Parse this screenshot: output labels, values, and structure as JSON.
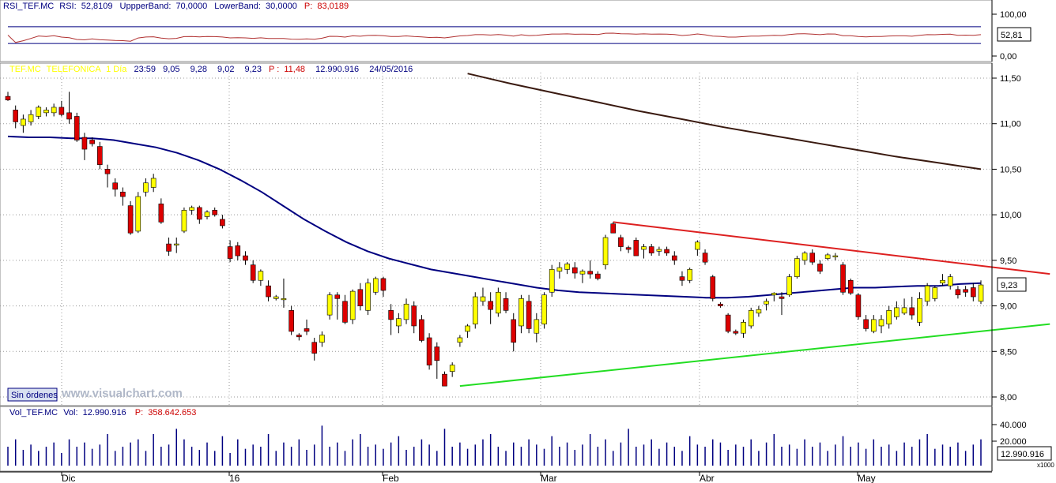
{
  "rsi_panel": {
    "header": {
      "label_name": "RSI_TEF.MC",
      "label_rsi": "RSI:",
      "rsi_value": "52,8109",
      "label_upper": "UppperBand:",
      "upper_value": "70,0000",
      "label_lower": "LowerBand:",
      "lower_value": "30,0000",
      "label_p": "P:",
      "p_value": "83,0189"
    },
    "axis": {
      "top": "100,00",
      "bottom": "0,00"
    },
    "last_value": "52,81",
    "upper_band": 70,
    "lower_band": 30,
    "colors": {
      "band": "#000080",
      "line": "#b03030"
    }
  },
  "price_panel": {
    "header": {
      "ticker": "TEF.MC",
      "name": "TELEFONICA",
      "period": "1 Día",
      "time": "23:59",
      "open": "9,05",
      "high": "9,28",
      "low": "9,02",
      "close": "9,23",
      "label_p": "P :",
      "p_value": "11,48",
      "volume": "12.990.916",
      "date": "24/05/2016"
    },
    "axis_ticks": [
      "11,50",
      "11,00",
      "10,50",
      "10,00",
      "9,50",
      "9,00",
      "8,50",
      "8,00"
    ],
    "last_price": "9,23",
    "orders_label": "Sin órdenes",
    "watermark": "www.visualchart.com",
    "colors": {
      "up": "#ffff00",
      "down": "#dd0000",
      "ma_short": "#000080",
      "ma_long": "#3a1a10",
      "resistance": "#dd2020",
      "support": "#22dd22"
    }
  },
  "volume_panel": {
    "header": {
      "label_name": "Vol_TEF.MC",
      "label_vol": "Vol:",
      "vol_value": "12.990.916",
      "label_p": "P:",
      "p_value": "358.642.653"
    },
    "axis": {
      "top": "40.000",
      "mid": "20.000",
      "unit": "x1000"
    },
    "last_value": "12.990.916",
    "colors": {
      "bar": "#000080"
    }
  },
  "date_axis": [
    "Dic",
    "16",
    "Feb",
    "Mar",
    "Abr",
    "May"
  ],
  "chart_data": {
    "type": "candlestick",
    "x_axis": [
      "Dic",
      "16",
      "Feb",
      "Mar",
      "Abr",
      "May"
    ],
    "ylim": [
      8.0,
      11.5
    ],
    "candles": [
      {
        "o": 11.3,
        "h": 11.35,
        "l": 11.25,
        "c": 11.26
      },
      {
        "o": 11.15,
        "h": 11.2,
        "l": 10.95,
        "c": 11.02
      },
      {
        "o": 10.98,
        "h": 11.1,
        "l": 10.9,
        "c": 11.05
      },
      {
        "o": 11.02,
        "h": 11.15,
        "l": 10.98,
        "c": 11.1
      },
      {
        "o": 11.08,
        "h": 11.2,
        "l": 11.05,
        "c": 11.18
      },
      {
        "o": 11.12,
        "h": 11.18,
        "l": 11.08,
        "c": 11.15
      },
      {
        "o": 11.12,
        "h": 11.22,
        "l": 11.08,
        "c": 11.18
      },
      {
        "o": 11.18,
        "h": 11.25,
        "l": 11.08,
        "c": 11.1
      },
      {
        "o": 11.12,
        "h": 11.35,
        "l": 11.0,
        "c": 11.05
      },
      {
        "o": 11.08,
        "h": 11.12,
        "l": 10.8,
        "c": 10.82
      },
      {
        "o": 10.85,
        "h": 10.9,
        "l": 10.6,
        "c": 10.72
      },
      {
        "o": 10.82,
        "h": 10.85,
        "l": 10.75,
        "c": 10.78
      },
      {
        "o": 10.75,
        "h": 10.8,
        "l": 10.5,
        "c": 10.55
      },
      {
        "o": 10.5,
        "h": 10.55,
        "l": 10.3,
        "c": 10.45
      },
      {
        "o": 10.35,
        "h": 10.4,
        "l": 10.2,
        "c": 10.28
      },
      {
        "o": 10.25,
        "h": 10.3,
        "l": 10.1,
        "c": 10.2
      },
      {
        "o": 10.1,
        "h": 10.15,
        "l": 9.78,
        "c": 9.8
      },
      {
        "o": 9.82,
        "h": 10.25,
        "l": 9.8,
        "c": 10.2
      },
      {
        "o": 10.25,
        "h": 10.4,
        "l": 10.2,
        "c": 10.35
      },
      {
        "o": 10.3,
        "h": 10.45,
        "l": 10.25,
        "c": 10.4
      },
      {
        "o": 10.12,
        "h": 10.18,
        "l": 9.9,
        "c": 9.92
      },
      {
        "o": 9.68,
        "h": 9.75,
        "l": 9.55,
        "c": 9.6
      },
      {
        "o": 9.68,
        "h": 9.75,
        "l": 9.58,
        "c": 9.68
      },
      {
        "o": 9.82,
        "h": 10.08,
        "l": 9.8,
        "c": 10.05
      },
      {
        "o": 10.05,
        "h": 10.1,
        "l": 10.0,
        "c": 10.08
      },
      {
        "o": 10.08,
        "h": 10.1,
        "l": 9.9,
        "c": 9.95
      },
      {
        "o": 9.98,
        "h": 10.05,
        "l": 9.95,
        "c": 10.03
      },
      {
        "o": 10.05,
        "h": 10.08,
        "l": 9.98,
        "c": 10.0
      },
      {
        "o": 9.95,
        "h": 10.0,
        "l": 9.85,
        "c": 9.88
      },
      {
        "o": 9.65,
        "h": 9.72,
        "l": 9.48,
        "c": 9.52
      },
      {
        "o": 9.66,
        "h": 9.7,
        "l": 9.5,
        "c": 9.55
      },
      {
        "o": 9.55,
        "h": 9.6,
        "l": 9.45,
        "c": 9.5
      },
      {
        "o": 9.45,
        "h": 9.5,
        "l": 9.25,
        "c": 9.28
      },
      {
        "o": 9.28,
        "h": 9.4,
        "l": 9.22,
        "c": 9.38
      },
      {
        "o": 9.22,
        "h": 9.28,
        "l": 9.05,
        "c": 9.1
      },
      {
        "o": 9.08,
        "h": 9.12,
        "l": 9.06,
        "c": 9.1
      },
      {
        "o": 9.08,
        "h": 9.3,
        "l": 8.98,
        "c": 9.08
      },
      {
        "o": 8.95,
        "h": 9.0,
        "l": 8.68,
        "c": 8.72
      },
      {
        "o": 8.68,
        "h": 8.7,
        "l": 8.62,
        "c": 8.66
      },
      {
        "o": 8.75,
        "h": 8.85,
        "l": 8.68,
        "c": 8.72
      },
      {
        "o": 8.6,
        "h": 8.65,
        "l": 8.4,
        "c": 8.48
      },
      {
        "o": 8.6,
        "h": 8.72,
        "l": 8.55,
        "c": 8.68
      },
      {
        "o": 8.9,
        "h": 9.15,
        "l": 8.85,
        "c": 9.12
      },
      {
        "o": 9.12,
        "h": 9.15,
        "l": 8.85,
        "c": 9.08
      },
      {
        "o": 9.05,
        "h": 9.12,
        "l": 8.8,
        "c": 8.82
      },
      {
        "o": 8.85,
        "h": 9.18,
        "l": 8.8,
        "c": 9.16
      },
      {
        "o": 9.18,
        "h": 9.25,
        "l": 8.95,
        "c": 9.0
      },
      {
        "o": 8.95,
        "h": 9.3,
        "l": 8.9,
        "c": 9.25
      },
      {
        "o": 9.15,
        "h": 9.32,
        "l": 9.12,
        "c": 9.3
      },
      {
        "o": 9.3,
        "h": 9.32,
        "l": 9.1,
        "c": 9.17
      },
      {
        "o": 8.95,
        "h": 9.02,
        "l": 8.68,
        "c": 8.85
      },
      {
        "o": 8.78,
        "h": 8.92,
        "l": 8.7,
        "c": 8.86
      },
      {
        "o": 8.85,
        "h": 9.08,
        "l": 8.8,
        "c": 9.02
      },
      {
        "o": 9.0,
        "h": 9.05,
        "l": 8.7,
        "c": 8.78
      },
      {
        "o": 8.85,
        "h": 8.9,
        "l": 8.6,
        "c": 8.62
      },
      {
        "o": 8.65,
        "h": 8.7,
        "l": 8.3,
        "c": 8.35
      },
      {
        "o": 8.55,
        "h": 8.6,
        "l": 8.2,
        "c": 8.4
      },
      {
        "o": 8.25,
        "h": 8.28,
        "l": 8.12,
        "c": 8.12
      },
      {
        "o": 8.28,
        "h": 8.38,
        "l": 8.22,
        "c": 8.35
      },
      {
        "o": 8.6,
        "h": 8.68,
        "l": 8.55,
        "c": 8.65
      },
      {
        "o": 8.72,
        "h": 8.8,
        "l": 8.65,
        "c": 8.78
      },
      {
        "o": 8.8,
        "h": 9.15,
        "l": 8.75,
        "c": 9.1
      },
      {
        "o": 9.05,
        "h": 9.2,
        "l": 9.0,
        "c": 9.1
      },
      {
        "o": 9.05,
        "h": 9.15,
        "l": 8.8,
        "c": 8.96
      },
      {
        "o": 8.92,
        "h": 9.2,
        "l": 8.88,
        "c": 9.15
      },
      {
        "o": 9.08,
        "h": 9.15,
        "l": 8.92,
        "c": 8.95
      },
      {
        "o": 8.85,
        "h": 8.92,
        "l": 8.5,
        "c": 8.6
      },
      {
        "o": 8.78,
        "h": 9.12,
        "l": 8.7,
        "c": 9.08
      },
      {
        "o": 9.05,
        "h": 9.12,
        "l": 8.7,
        "c": 8.75
      },
      {
        "o": 8.7,
        "h": 8.92,
        "l": 8.6,
        "c": 8.85
      },
      {
        "o": 8.8,
        "h": 9.15,
        "l": 8.75,
        "c": 9.12
      },
      {
        "o": 9.15,
        "h": 9.45,
        "l": 9.1,
        "c": 9.4
      },
      {
        "o": 9.38,
        "h": 9.48,
        "l": 9.3,
        "c": 9.42
      },
      {
        "o": 9.4,
        "h": 9.48,
        "l": 9.35,
        "c": 9.46
      },
      {
        "o": 9.42,
        "h": 9.48,
        "l": 9.3,
        "c": 9.36
      },
      {
        "o": 9.35,
        "h": 9.4,
        "l": 9.25,
        "c": 9.38
      },
      {
        "o": 9.38,
        "h": 9.5,
        "l": 9.3,
        "c": 9.35
      },
      {
        "o": 9.35,
        "h": 9.38,
        "l": 9.28,
        "c": 9.3
      },
      {
        "o": 9.45,
        "h": 9.78,
        "l": 9.4,
        "c": 9.75
      },
      {
        "o": 9.9,
        "h": 9.92,
        "l": 9.8,
        "c": 9.8
      },
      {
        "o": 9.75,
        "h": 9.78,
        "l": 9.6,
        "c": 9.65
      },
      {
        "o": 9.64,
        "h": 9.66,
        "l": 9.58,
        "c": 9.62
      },
      {
        "o": 9.72,
        "h": 9.75,
        "l": 9.55,
        "c": 9.55
      },
      {
        "o": 9.62,
        "h": 9.68,
        "l": 9.52,
        "c": 9.65
      },
      {
        "o": 9.65,
        "h": 9.68,
        "l": 9.55,
        "c": 9.58
      },
      {
        "o": 9.6,
        "h": 9.65,
        "l": 9.55,
        "c": 9.62
      },
      {
        "o": 9.62,
        "h": 9.65,
        "l": 9.55,
        "c": 9.58
      },
      {
        "o": 9.55,
        "h": 9.6,
        "l": 9.45,
        "c": 9.5
      },
      {
        "o": 9.32,
        "h": 9.38,
        "l": 9.22,
        "c": 9.28
      },
      {
        "o": 9.28,
        "h": 9.42,
        "l": 9.25,
        "c": 9.4
      },
      {
        "o": 9.62,
        "h": 9.72,
        "l": 9.55,
        "c": 9.7
      },
      {
        "o": 9.58,
        "h": 9.62,
        "l": 9.45,
        "c": 9.48
      },
      {
        "o": 9.32,
        "h": 9.34,
        "l": 9.05,
        "c": 9.08
      },
      {
        "o": 9.02,
        "h": 9.04,
        "l": 8.98,
        "c": 9.0
      },
      {
        "o": 8.9,
        "h": 8.92,
        "l": 8.7,
        "c": 8.72
      },
      {
        "o": 8.72,
        "h": 8.74,
        "l": 8.68,
        "c": 8.7
      },
      {
        "o": 8.7,
        "h": 8.85,
        "l": 8.65,
        "c": 8.82
      },
      {
        "o": 8.78,
        "h": 8.98,
        "l": 8.75,
        "c": 8.95
      },
      {
        "o": 8.92,
        "h": 9.0,
        "l": 8.88,
        "c": 8.96
      },
      {
        "o": 9.02,
        "h": 9.08,
        "l": 8.95,
        "c": 9.05
      },
      {
        "o": 9.12,
        "h": 9.15,
        "l": 9.05,
        "c": 9.14
      },
      {
        "o": 9.1,
        "h": 9.15,
        "l": 8.9,
        "c": 9.08
      },
      {
        "o": 9.12,
        "h": 9.35,
        "l": 9.1,
        "c": 9.32
      },
      {
        "o": 9.32,
        "h": 9.55,
        "l": 9.3,
        "c": 9.52
      },
      {
        "o": 9.5,
        "h": 9.6,
        "l": 9.45,
        "c": 9.58
      },
      {
        "o": 9.58,
        "h": 9.62,
        "l": 9.45,
        "c": 9.48
      },
      {
        "o": 9.46,
        "h": 9.5,
        "l": 9.35,
        "c": 9.38
      },
      {
        "o": 9.52,
        "h": 9.58,
        "l": 9.5,
        "c": 9.56
      },
      {
        "o": 9.55,
        "h": 9.58,
        "l": 9.5,
        "c": 9.55
      },
      {
        "o": 9.45,
        "h": 9.48,
        "l": 9.12,
        "c": 9.15
      },
      {
        "o": 9.28,
        "h": 9.3,
        "l": 9.12,
        "c": 9.14
      },
      {
        "o": 9.12,
        "h": 9.14,
        "l": 8.85,
        "c": 8.88
      },
      {
        "o": 8.85,
        "h": 8.9,
        "l": 8.72,
        "c": 8.75
      },
      {
        "o": 8.72,
        "h": 8.9,
        "l": 8.7,
        "c": 8.85
      },
      {
        "o": 8.78,
        "h": 8.9,
        "l": 8.7,
        "c": 8.85
      },
      {
        "o": 8.8,
        "h": 9.0,
        "l": 8.75,
        "c": 8.95
      },
      {
        "o": 8.88,
        "h": 9.05,
        "l": 8.85,
        "c": 8.98
      },
      {
        "o": 8.92,
        "h": 9.08,
        "l": 8.9,
        "c": 8.98
      },
      {
        "o": 8.98,
        "h": 9.1,
        "l": 8.85,
        "c": 8.9
      },
      {
        "o": 8.82,
        "h": 9.15,
        "l": 8.78,
        "c": 9.08
      },
      {
        "o": 9.05,
        "h": 9.25,
        "l": 9.0,
        "c": 9.22
      },
      {
        "o": 9.08,
        "h": 9.22,
        "l": 9.05,
        "c": 9.2
      },
      {
        "o": 9.25,
        "h": 9.35,
        "l": 9.22,
        "c": 9.28
      },
      {
        "o": 9.22,
        "h": 9.35,
        "l": 9.18,
        "c": 9.32
      },
      {
        "o": 9.18,
        "h": 9.22,
        "l": 9.08,
        "c": 9.12
      },
      {
        "o": 9.18,
        "h": 9.22,
        "l": 9.1,
        "c": 9.15
      },
      {
        "o": 9.2,
        "h": 9.25,
        "l": 9.05,
        "c": 9.1
      },
      {
        "o": 9.05,
        "h": 9.28,
        "l": 9.02,
        "c": 9.23
      }
    ],
    "ma_short": [
      10.86,
      10.85,
      10.85,
      10.84,
      10.84,
      10.82,
      10.78,
      10.74,
      10.68,
      10.6,
      10.5,
      10.38,
      10.25,
      10.1,
      9.95,
      9.82,
      9.7,
      9.6,
      9.52,
      9.46,
      9.4,
      9.36,
      9.32,
      9.28,
      9.24,
      9.2,
      9.17,
      9.15,
      9.14,
      9.13,
      9.12,
      9.11,
      9.1,
      9.09,
      9.09,
      9.1,
      9.12,
      9.14,
      9.16,
      9.18,
      9.2,
      9.2,
      9.21,
      9.22,
      9.22,
      9.24,
      9.25
    ],
    "ma_long": [
      11.55,
      11.44,
      11.34,
      11.24,
      11.14,
      11.05,
      10.96,
      10.88,
      10.8,
      10.72,
      10.64,
      10.57,
      10.5
    ],
    "resistance": [
      [
        79,
        9.92
      ],
      [
        136,
        9.35
      ]
    ],
    "support": [
      [
        59,
        8.12
      ],
      [
        136,
        8.8
      ]
    ],
    "volume": [
      18,
      25,
      15,
      20,
      14,
      18,
      22,
      12,
      25,
      18,
      22,
      16,
      20,
      30,
      14,
      18,
      22,
      25,
      14,
      30,
      18,
      20,
      35,
      25,
      18,
      15,
      22,
      14,
      28,
      12,
      25,
      16,
      20,
      18,
      30,
      14,
      22,
      18,
      25,
      15,
      20,
      38,
      18,
      22,
      14,
      25,
      30,
      18,
      20,
      16,
      22,
      28,
      15,
      18,
      25,
      20,
      14,
      35,
      18,
      22,
      16,
      20,
      25,
      30,
      18,
      14,
      22,
      18,
      25,
      20,
      16,
      28,
      18,
      22,
      15,
      20,
      30,
      18,
      25,
      14,
      22,
      35,
      18,
      20,
      25,
      16,
      22,
      18,
      14,
      28,
      20,
      18,
      25,
      22,
      15,
      20,
      18,
      25,
      14,
      22,
      30,
      18,
      20,
      16,
      25,
      18,
      22,
      14,
      20,
      28,
      18,
      22,
      16,
      25,
      18,
      20,
      14,
      22,
      18,
      25,
      30,
      16,
      20,
      18,
      22,
      14,
      20,
      25,
      18,
      16,
      22,
      18,
      20,
      14,
      16,
      18,
      15,
      13
    ]
  }
}
